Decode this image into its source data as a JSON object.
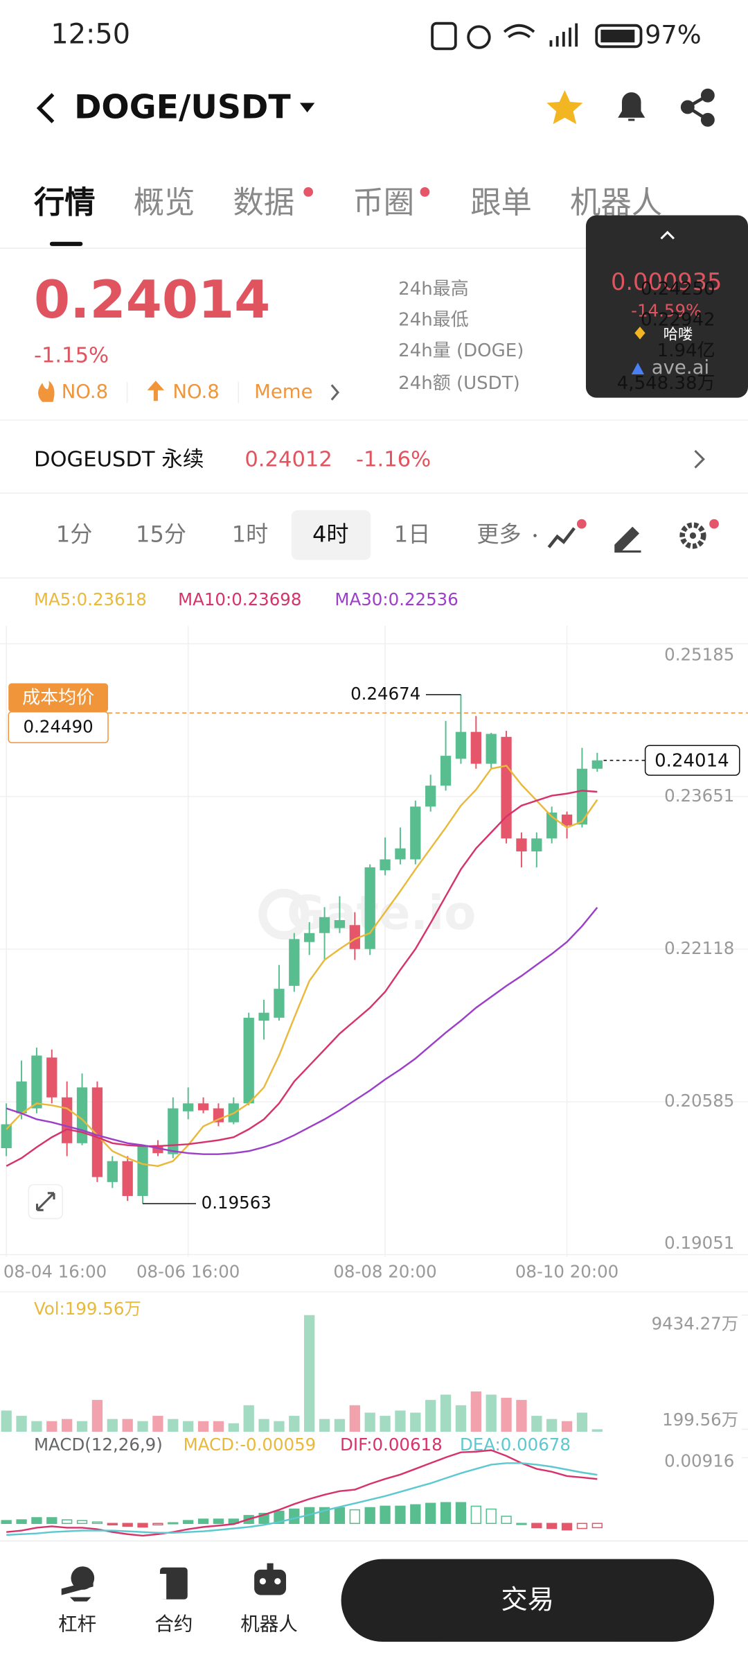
{
  "status_bar": {
    "time": "12:50",
    "battery": "97%"
  },
  "header": {
    "pair": "DOGE/USDT"
  },
  "tabs": [
    "行情",
    "概览",
    "数据",
    "币圈",
    "跟单",
    "机器人"
  ],
  "price": {
    "last": "0.24014",
    "change": "-1.15%",
    "badges": [
      "NO.8",
      "NO.8",
      "Meme"
    ],
    "stats_labels": [
      "24h最高",
      "24h最低",
      "24h量 (DOGE)",
      "24h额 (USDT)"
    ]
  },
  "overlay": {
    "price": "0.000935",
    "change": "-14.59%",
    "name": "哈喽",
    "source": "ave.ai",
    "stats_values": [
      "0.24250",
      "0.22942",
      "1.94亿",
      "4,548.38万"
    ]
  },
  "perpetual": {
    "label": "DOGEUSDT 永续",
    "price": "0.24012",
    "change": "-1.16%"
  },
  "intervals": [
    "1分",
    "15分",
    "1时",
    "4时",
    "1日",
    "更多"
  ],
  "active_interval": 3,
  "watermark": "Gate.io",
  "chart_data": {
    "type": "candlestick",
    "categories": [
      "08-04 16:00",
      null,
      null,
      null,
      null,
      null,
      null,
      null,
      null,
      null,
      null,
      null,
      "08-06 16:00",
      null,
      null,
      null,
      null,
      null,
      null,
      null,
      null,
      null,
      null,
      null,
      null,
      "08-08 20:00",
      null,
      null,
      null,
      null,
      null,
      null,
      null,
      null,
      null,
      null,
      null,
      "08-10 20:00",
      null,
      null
    ],
    "open": [
      0.2012,
      0.2047,
      0.2052,
      0.2103,
      0.2063,
      0.2017,
      0.2073,
      0.1978,
      0.1999,
      0.1964,
      0.2015,
      0.2006,
      0.2049,
      0.2057,
      0.2052,
      0.2038,
      0.2057,
      0.214,
      0.2143,
      0.2175,
      0.2219,
      0.2228,
      0.2233,
      0.2236,
      0.2212,
      0.2291,
      0.2302,
      0.2302,
      0.2355,
      0.2376,
      0.2403,
      0.243,
      0.2398,
      0.2425,
      0.2323,
      0.231,
      0.2323,
      0.2347,
      0.2337,
      0.2393
    ],
    "high": [
      0.2057,
      0.21,
      0.2113,
      0.2111,
      0.2079,
      0.2087,
      0.2079,
      0.2004,
      0.2004,
      0.2015,
      0.202,
      0.2063,
      0.2073,
      0.2063,
      0.2057,
      0.2063,
      0.2148,
      0.2161,
      0.2196,
      0.2228,
      0.2239,
      0.2254,
      0.2265,
      0.2249,
      0.2297,
      0.2324,
      0.2334,
      0.2361,
      0.2387,
      0.2441,
      0.24674,
      0.2446,
      0.2429,
      0.2431,
      0.2329,
      0.2329,
      0.2355,
      0.235,
      0.2414,
      0.2409
    ],
    "low": [
      0.2004,
      0.2041,
      0.2047,
      0.2057,
      0.2004,
      0.2015,
      0.1978,
      0.1972,
      0.1959,
      0.19563,
      0.2004,
      0.2002,
      0.2041,
      0.2047,
      0.2034,
      0.2036,
      0.2055,
      0.2121,
      0.214,
      0.2169,
      0.2206,
      0.2201,
      0.2228,
      0.2201,
      0.2206,
      0.2286,
      0.2297,
      0.2297,
      0.235,
      0.2371,
      0.2398,
      0.2393,
      0.2393,
      0.2318,
      0.2294,
      0.2294,
      0.2318,
      0.2323,
      0.2334,
      0.239
    ],
    "close": [
      0.2036,
      0.2079,
      0.2105,
      0.2063,
      0.2017,
      0.2073,
      0.1983,
      0.1999,
      0.1964,
      0.2015,
      0.2007,
      0.2052,
      0.2057,
      0.205,
      0.2038,
      0.2057,
      0.2143,
      0.2148,
      0.2172,
      0.2222,
      0.2228,
      0.2244,
      0.2241,
      0.2212,
      0.2294,
      0.2302,
      0.2313,
      0.2355,
      0.2376,
      0.2406,
      0.243,
      0.2398,
      0.2428,
      0.2323,
      0.231,
      0.2323,
      0.2349,
      0.2336,
      0.2393,
      0.24014
    ],
    "up_color": "#58bd8f",
    "down_color": "#e5566a",
    "ylim": [
      0.19051,
      0.25185
    ],
    "yticks": [
      0.25185,
      0.23651,
      0.22118,
      0.20585,
      0.19051
    ],
    "grid": true,
    "series": [
      {
        "name": "MA5",
        "label": "MA5:0.23618",
        "color": "#e9b93c",
        "values": [
          0.2031,
          0.2047,
          0.2057,
          0.2055,
          0.2052,
          0.2041,
          0.2025,
          0.2009,
          0.2002,
          0.1996,
          0.1994,
          0.1999,
          0.2015,
          0.2034,
          0.2041,
          0.2047,
          0.2057,
          0.2073,
          0.2105,
          0.2143,
          0.218,
          0.2201,
          0.2212,
          0.2222,
          0.2228,
          0.2249,
          0.227,
          0.2292,
          0.2313,
          0.2334,
          0.2356,
          0.2372,
          0.2393,
          0.2396,
          0.2377,
          0.2361,
          0.2345,
          0.2334,
          0.234,
          0.23618
        ]
      },
      {
        "name": "MA10",
        "label": "MA10:0.23698",
        "color": "#d6336c",
        "values": [
          0.1994,
          0.2002,
          0.2013,
          0.2023,
          0.2031,
          0.2028,
          0.2023,
          0.2017,
          0.2015,
          0.2014,
          0.2014,
          0.2015,
          0.2016,
          0.2018,
          0.202,
          0.2023,
          0.2031,
          0.2041,
          0.2057,
          0.2079,
          0.2095,
          0.2111,
          0.2127,
          0.214,
          0.2153,
          0.2169,
          0.2191,
          0.2212,
          0.2238,
          0.2265,
          0.2292,
          0.2313,
          0.2329,
          0.2345,
          0.2356,
          0.2361,
          0.2366,
          0.2368,
          0.2371,
          0.23698
        ]
      },
      {
        "name": "MA30",
        "label": "MA30:0.22536",
        "color": "#9b3fc9",
        "values": [
          0.2052,
          0.2047,
          0.2041,
          0.2038,
          0.2034,
          0.203,
          0.2025,
          0.2021,
          0.2017,
          0.2015,
          0.2012,
          0.2009,
          0.2007,
          0.2006,
          0.2006,
          0.2007,
          0.2009,
          0.2013,
          0.2018,
          0.2025,
          0.2033,
          0.2041,
          0.205,
          0.206,
          0.207,
          0.2081,
          0.2091,
          0.2102,
          0.2115,
          0.2128,
          0.214,
          0.2153,
          0.2164,
          0.2175,
          0.2185,
          0.2196,
          0.2207,
          0.2219,
          0.2235,
          0.22536
        ]
      }
    ],
    "reference_line": {
      "name": "成本均价",
      "value": 0.2449,
      "label": "0.24490",
      "color": "#f0953a"
    },
    "volume": {
      "label": "Vol:199.56万",
      "values": [
        1715,
        1287,
        858,
        858,
        1029,
        858,
        2573,
        1029,
        1029,
        858,
        1287,
        1029,
        858,
        858,
        858,
        686,
        2144,
        1029,
        858,
        1287,
        9434.27,
        1029,
        1029,
        2144,
        1544,
        1287,
        1715,
        1544,
        2573,
        3002,
        2144,
        3259,
        3002,
        2745,
        2573,
        1287,
        1029,
        858,
        1544,
        199.56
      ],
      "ylim": [
        0,
        9434.27
      ],
      "yticks": [
        {
          "value": 9434.27,
          "label": "9434.27万"
        },
        {
          "value": 199.56,
          "label": "199.56万"
        }
      ]
    },
    "macd": {
      "title": "MACD(12,26,9)",
      "hist_label": "MACD:-0.00059",
      "dif_label": "DIF:0.00618",
      "dea_label": "DEA:0.00678",
      "hist_color": "#e9b93c",
      "dif_color": "#d6336c",
      "dea_color": "#5cc8d0",
      "hist": [
        0.0004,
        0.0005,
        0.0008,
        0.0008,
        0.0005,
        0.0004,
        0.0002,
        -0.0002,
        -0.0004,
        -0.0005,
        -0.0002,
        0.0001,
        0.0004,
        0.0006,
        0.0006,
        0.0006,
        0.0011,
        0.0014,
        0.0017,
        0.002,
        0.0022,
        0.0022,
        0.0022,
        0.0019,
        0.0022,
        0.0024,
        0.0024,
        0.0026,
        0.0028,
        0.0029,
        0.0029,
        0.0024,
        0.002,
        0.001,
        0,
        -0.0006,
        -0.0007,
        -0.0009,
        -0.0007,
        -0.00059
      ],
      "dif": [
        -0.0012,
        -0.001,
        -0.0006,
        -0.0004,
        -0.0006,
        -0.0006,
        -0.0008,
        -0.0012,
        -0.0015,
        -0.0017,
        -0.0015,
        -0.0012,
        -0.0008,
        -0.0005,
        -0.0003,
        -0.0001,
        0.0006,
        0.0012,
        0.0019,
        0.0027,
        0.0034,
        0.004,
        0.0045,
        0.0047,
        0.0055,
        0.0062,
        0.0068,
        0.0076,
        0.0084,
        0.0092,
        0.0099,
        0.01,
        0.0102,
        0.0094,
        0.0084,
        0.0076,
        0.0072,
        0.0066,
        0.0064,
        0.00618
      ],
      "dea": [
        -0.0016,
        -0.0015,
        -0.0014,
        -0.0012,
        -0.0011,
        -0.001,
        -0.001,
        -0.001,
        -0.0011,
        -0.0012,
        -0.0013,
        -0.0013,
        -0.0012,
        -0.0011,
        -0.0009,
        -0.0007,
        -0.0005,
        -0.0002,
        0.0002,
        0.0007,
        0.0012,
        0.0018,
        0.0023,
        0.0028,
        0.0033,
        0.0038,
        0.0044,
        0.005,
        0.0056,
        0.0063,
        0.007,
        0.0076,
        0.0082,
        0.0084,
        0.0084,
        0.0082,
        0.0079,
        0.0075,
        0.0071,
        0.00678
      ],
      "ylim": [
        -0.002,
        0.011
      ],
      "yticks": [
        0.00916
      ]
    }
  },
  "bottom_nav": [
    "杠杆",
    "合约",
    "机器人"
  ],
  "trade_button": "交易"
}
